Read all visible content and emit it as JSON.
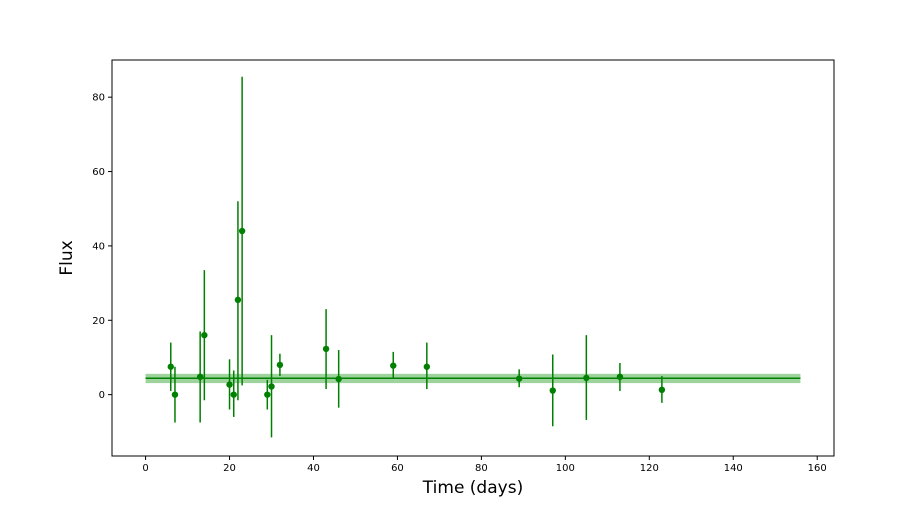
{
  "chart_data": {
    "type": "scatter",
    "title": "",
    "xlabel": "Time (days)",
    "ylabel": "Flux",
    "xlim": [
      -8,
      164
    ],
    "ylim": [
      -16.5,
      90
    ],
    "xticks": [
      0,
      20,
      40,
      60,
      80,
      100,
      120,
      140,
      160
    ],
    "yticks": [
      0,
      20,
      40,
      60,
      80
    ],
    "grid": false,
    "series": [
      {
        "color": "#008000",
        "points": [
          {
            "x": 6,
            "y": 7.5,
            "ylow": 1,
            "yhigh": 14
          },
          {
            "x": 7,
            "y": 0,
            "ylow": -7.5,
            "yhigh": 7.5
          },
          {
            "x": 13,
            "y": 4.8,
            "ylow": -7.5,
            "yhigh": 17
          },
          {
            "x": 14,
            "y": 16,
            "ylow": -1.5,
            "yhigh": 33.5
          },
          {
            "x": 20,
            "y": 2.7,
            "ylow": -4,
            "yhigh": 9.5
          },
          {
            "x": 21,
            "y": 0,
            "ylow": -6,
            "yhigh": 6.5
          },
          {
            "x": 22,
            "y": 25.5,
            "ylow": -1.5,
            "yhigh": 52
          },
          {
            "x": 23,
            "y": 44,
            "ylow": 2.5,
            "yhigh": 85.5
          },
          {
            "x": 29,
            "y": 0,
            "ylow": -4,
            "yhigh": 4
          },
          {
            "x": 30,
            "y": 2.2,
            "ylow": -11.5,
            "yhigh": 16
          },
          {
            "x": 32,
            "y": 8,
            "ylow": 5,
            "yhigh": 11
          },
          {
            "x": 43,
            "y": 12.3,
            "ylow": 1.5,
            "yhigh": 23
          },
          {
            "x": 46,
            "y": 4.2,
            "ylow": -3.5,
            "yhigh": 12
          },
          {
            "x": 59,
            "y": 7.8,
            "ylow": 4.5,
            "yhigh": 11.5
          },
          {
            "x": 67,
            "y": 7.5,
            "ylow": 1.5,
            "yhigh": 14
          },
          {
            "x": 89,
            "y": 4.3,
            "ylow": 2,
            "yhigh": 6.8
          },
          {
            "x": 97,
            "y": 1.1,
            "ylow": -8.5,
            "yhigh": 10.8
          },
          {
            "x": 105,
            "y": 4.5,
            "ylow": -6.8,
            "yhigh": 16
          },
          {
            "x": 113,
            "y": 4.8,
            "ylow": 1,
            "yhigh": 8.5
          },
          {
            "x": 123,
            "y": 1.3,
            "ylow": -2.2,
            "yhigh": 5
          }
        ]
      }
    ],
    "mean_line": {
      "y": 4.4,
      "band": [
        3.1,
        5.6
      ],
      "x_start": 0,
      "x_end": 156,
      "color": "#008000",
      "band_color": "#7dc47d"
    }
  }
}
